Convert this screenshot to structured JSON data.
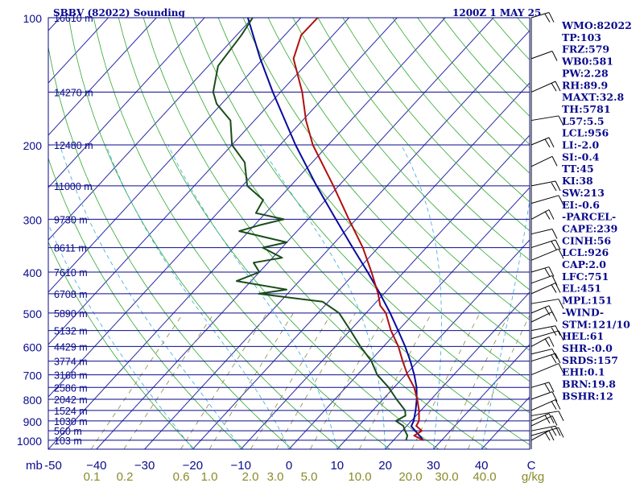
{
  "chart_data": {
    "type": "line",
    "title": "SBBV (82022) Sounding",
    "time_label": "1200Z  1 MAY 25",
    "pressure_axis": {
      "unit_label": "mb",
      "ticks": [
        100,
        200,
        300,
        400,
        500,
        600,
        700,
        800,
        900,
        1000
      ],
      "range": [
        1000,
        100
      ]
    },
    "temperature_axis": {
      "unit_label": "C",
      "ticks": [
        -50,
        -40,
        -30,
        -20,
        -10,
        0,
        10,
        20,
        30,
        40
      ],
      "ticks_text": [
        "-50",
        "−40",
        "−30",
        "−20",
        "−10",
        "0",
        "10",
        "20",
        "30",
        "40"
      ],
      "range": [
        -50,
        50
      ]
    },
    "mixing_ratio_axis": {
      "unit_label": "g/kg",
      "ticks": [
        "0.1",
        "0.2",
        "0.6",
        "1.0",
        "2.0",
        "3.0",
        "5.0",
        "10.0",
        "20.0",
        "30.0",
        "40.0"
      ]
    },
    "heights": [
      {
        "p": 100,
        "label": "16610 m"
      },
      {
        "p": 150,
        "label": "14270 m"
      },
      {
        "p": 200,
        "label": "12480 m"
      },
      {
        "p": 250,
        "label": "11000 m"
      },
      {
        "p": 300,
        "label": "9730 m"
      },
      {
        "p": 350,
        "label": "8611 m"
      },
      {
        "p": 400,
        "label": "7610 m"
      },
      {
        "p": 450,
        "label": "6708 m"
      },
      {
        "p": 500,
        "label": "5890 m"
      },
      {
        "p": 550,
        "label": "5132 m"
      },
      {
        "p": 600,
        "label": "4429 m"
      },
      {
        "p": 650,
        "label": "3774 m"
      },
      {
        "p": 700,
        "label": "3168 m"
      },
      {
        "p": 750,
        "label": "2586 m"
      },
      {
        "p": 800,
        "label": "2042 m"
      },
      {
        "p": 850,
        "label": "1524 m"
      },
      {
        "p": 900,
        "label": "1030 m"
      },
      {
        "p": 950,
        "label": "560 m"
      },
      {
        "p": 1000,
        "label": "103 m"
      }
    ],
    "series": [
      {
        "name": "Temperature",
        "color": "#b01010",
        "x_unit": "skewed degC",
        "points": [
          [
            1000,
            26.2
          ],
          [
            975,
            23.4
          ],
          [
            950,
            24.1
          ],
          [
            925,
            22.0
          ],
          [
            900,
            21.6
          ],
          [
            850,
            19.6
          ],
          [
            800,
            17.1
          ],
          [
            750,
            14.2
          ],
          [
            700,
            10.4
          ],
          [
            650,
            6.8
          ],
          [
            600,
            3.1
          ],
          [
            550,
            -1.5
          ],
          [
            500,
            -5.9
          ],
          [
            480,
            -8.5
          ],
          [
            450,
            -11.2
          ],
          [
            400,
            -16.7
          ],
          [
            350,
            -23.2
          ],
          [
            300,
            -31.5
          ],
          [
            250,
            -41.1
          ],
          [
            200,
            -53.2
          ],
          [
            175,
            -59.3
          ],
          [
            150,
            -65.5
          ],
          [
            125,
            -73.7
          ],
          [
            110,
            -76.6
          ],
          [
            100,
            -76.5
          ]
        ]
      },
      {
        "name": "Dewpoint",
        "color": "#1a4d1a",
        "x_unit": "skewed degC",
        "points": [
          [
            1000,
            22.6
          ],
          [
            975,
            22.0
          ],
          [
            950,
            20.6
          ],
          [
            925,
            19.3
          ],
          [
            900,
            16.8
          ],
          [
            875,
            17.8
          ],
          [
            850,
            16.7
          ],
          [
            800,
            12.8
          ],
          [
            750,
            8.9
          ],
          [
            700,
            4.1
          ],
          [
            650,
            0.3
          ],
          [
            600,
            -4.8
          ],
          [
            550,
            -9.9
          ],
          [
            500,
            -15.6
          ],
          [
            470,
            -21.2
          ],
          [
            450,
            -36.0
          ],
          [
            440,
            -31.0
          ],
          [
            420,
            -43.0
          ],
          [
            400,
            -40.0
          ],
          [
            380,
            -43.0
          ],
          [
            370,
            -38.0
          ],
          [
            350,
            -44.0
          ],
          [
            340,
            -40.0
          ],
          [
            320,
            -52.0
          ],
          [
            310,
            -49.0
          ],
          [
            300,
            -45.0
          ],
          [
            290,
            -52.0
          ],
          [
            270,
            -53.0
          ],
          [
            250,
            -59.0
          ],
          [
            220,
            -64.0
          ],
          [
            200,
            -70.0
          ],
          [
            175,
            -75.0
          ],
          [
            160,
            -81.0
          ],
          [
            150,
            -84.0
          ],
          [
            130,
            -88.0
          ],
          [
            110,
            -89.0
          ],
          [
            100,
            -90.0
          ]
        ]
      },
      {
        "name": "Parcel",
        "color": "#0a0a9c",
        "x_unit": "skewed degC",
        "points": [
          [
            1000,
            26.2
          ],
          [
            926,
            21.0
          ],
          [
            900,
            20.5
          ],
          [
            850,
            18.9
          ],
          [
            800,
            17.0
          ],
          [
            750,
            14.7
          ],
          [
            700,
            11.8
          ],
          [
            650,
            8.4
          ],
          [
            600,
            4.5
          ],
          [
            550,
            0.0
          ],
          [
            500,
            -5.0
          ],
          [
            450,
            -10.8
          ],
          [
            400,
            -17.5
          ],
          [
            350,
            -25.3
          ],
          [
            300,
            -34.2
          ],
          [
            250,
            -44.6
          ],
          [
            200,
            -56.8
          ],
          [
            150,
            -71.6
          ],
          [
            125,
            -80.6
          ],
          [
            100,
            -91.0
          ]
        ]
      }
    ],
    "stats": [
      "WMO:82022",
      "TP:103",
      "FRZ:579",
      "WB0:581",
      "PW:2.28",
      "RH:89.9",
      "MAXT:32.8",
      "TH:5781",
      "L57:5.5",
      "LCL:956",
      "LI:-2.0",
      "SI:-0.4",
      "TT:45",
      "KI:38",
      "SW:213",
      "EI:-0.6",
      "-PARCEL-",
      "CAPE:239",
      "CINH:56",
      "LCL:926",
      "CAP:2.0",
      "LFC:751",
      "EL:451",
      "MPL:151",
      "-WIND-",
      "STM:121/10",
      "HEL:61",
      "SHR-:0.0",
      "SRDS:157",
      "EHI:0.1",
      "BRN:19.8",
      "BSHR:12"
    ]
  }
}
